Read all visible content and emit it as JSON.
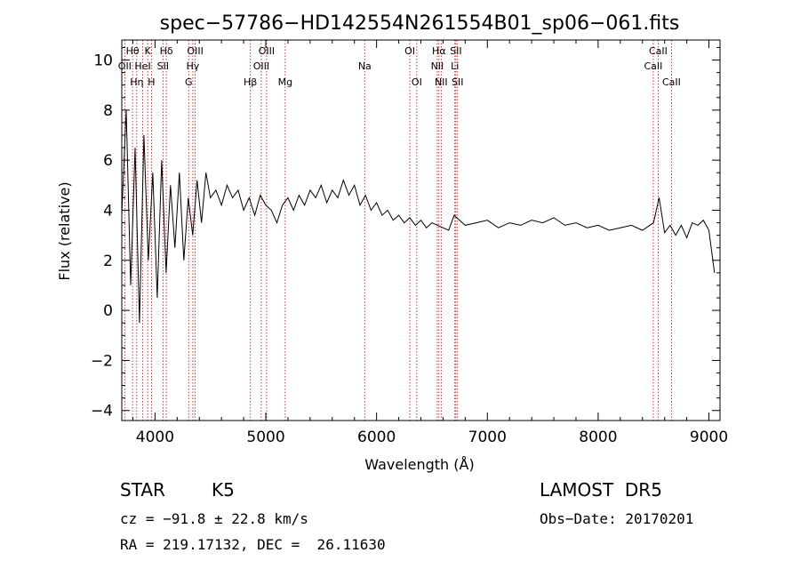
{
  "chart_data": {
    "type": "line",
    "title": "spec−57786−HD142554N261554B01_sp06−061.fits",
    "xlabel": "Wavelength (Å)",
    "ylabel": "Flux (relative)",
    "xlim": [
      3700,
      9100
    ],
    "ylim": [
      -4.4,
      10.8
    ],
    "x_ticks": [
      4000,
      5000,
      6000,
      7000,
      8000,
      9000
    ],
    "x_tick_labels": [
      "4000",
      "5000",
      "6000",
      "7000",
      "8000",
      "9000"
    ],
    "y_ticks": [
      -4,
      -2,
      0,
      2,
      4,
      6,
      8,
      10
    ],
    "y_tick_labels": [
      "−4",
      "−2",
      "0",
      "2",
      "4",
      "6",
      "8",
      "10"
    ],
    "grid": false,
    "series": [
      {
        "x": [
          3700,
          3740,
          3780,
          3820,
          3860,
          3900,
          3940,
          3980,
          4020,
          4060,
          4100,
          4140,
          4180,
          4220,
          4260,
          4300,
          4340,
          4380,
          4420,
          4460,
          4500,
          4550,
          4600,
          4650,
          4700,
          4750,
          4800,
          4850,
          4900,
          4950,
          5000,
          5050,
          5100,
          5150,
          5200,
          5250,
          5300,
          5350,
          5400,
          5450,
          5500,
          5550,
          5600,
          5650,
          5700,
          5750,
          5800,
          5850,
          5900,
          5950,
          6000,
          6050,
          6100,
          6150,
          6200,
          6250,
          6300,
          6350,
          6400,
          6450,
          6500,
          6550,
          6600,
          6650,
          6700,
          6750,
          6800,
          6900,
          7000,
          7100,
          7200,
          7300,
          7400,
          7500,
          7600,
          7700,
          7800,
          7900,
          8000,
          8100,
          8200,
          8300,
          8400,
          8500,
          8550,
          8600,
          8650,
          8700,
          8750,
          8800,
          8850,
          8900,
          8950,
          9000,
          9050
        ],
        "y": [
          3.8,
          8.0,
          1.0,
          6.5,
          -0.5,
          7.0,
          2.0,
          5.5,
          0.5,
          6.0,
          1.5,
          5.0,
          2.5,
          5.5,
          2.0,
          4.5,
          3.0,
          5.2,
          3.5,
          5.5,
          4.5,
          4.8,
          4.2,
          5.0,
          4.5,
          4.8,
          4.0,
          4.5,
          3.8,
          4.6,
          4.2,
          4.0,
          3.5,
          4.2,
          4.5,
          4.0,
          4.6,
          4.2,
          4.8,
          4.5,
          5.0,
          4.3,
          4.8,
          4.5,
          5.2,
          4.6,
          5.0,
          4.2,
          4.6,
          4.0,
          4.3,
          3.8,
          4.0,
          3.6,
          3.8,
          3.5,
          3.7,
          3.4,
          3.6,
          3.3,
          3.5,
          3.4,
          3.3,
          3.2,
          3.8,
          3.6,
          3.4,
          3.5,
          3.6,
          3.3,
          3.5,
          3.4,
          3.6,
          3.5,
          3.7,
          3.4,
          3.5,
          3.3,
          3.4,
          3.2,
          3.3,
          3.4,
          3.2,
          3.5,
          4.5,
          3.1,
          3.4,
          3.0,
          3.4,
          2.9,
          3.5,
          3.4,
          3.6,
          3.2,
          1.5
        ]
      }
    ],
    "spectral_lines": [
      {
        "wavelength": 3727,
        "label": "OII",
        "row": 2
      },
      {
        "wavelength": 3797,
        "label": "Hθ",
        "row": 1
      },
      {
        "wavelength": 3835,
        "label": "Hη",
        "row": 3
      },
      {
        "wavelength": 3889,
        "label": "HeI",
        "row": 2
      },
      {
        "wavelength": 3934,
        "label": "K",
        "row": 1
      },
      {
        "wavelength": 3968,
        "label": "H",
        "row": 3
      },
      {
        "wavelength": 4072,
        "label": "SII",
        "row": 2
      },
      {
        "wavelength": 4102,
        "label": "Hδ",
        "row": 1
      },
      {
        "wavelength": 4304,
        "label": "G",
        "row": 3
      },
      {
        "wavelength": 4341,
        "label": "Hγ",
        "row": 2
      },
      {
        "wavelength": 4363,
        "label": "OIII",
        "row": 1
      },
      {
        "wavelength": 4861,
        "label": "Hβ",
        "row": 3
      },
      {
        "wavelength": 4959,
        "label": "OIII",
        "row": 2
      },
      {
        "wavelength": 5007,
        "label": "OIII",
        "row": 1
      },
      {
        "wavelength": 5175,
        "label": "Mg",
        "row": 3
      },
      {
        "wavelength": 5893,
        "label": "Na",
        "row": 2
      },
      {
        "wavelength": 6300,
        "label": "OI",
        "row": 1
      },
      {
        "wavelength": 6363,
        "label": "OI",
        "row": 3
      },
      {
        "wavelength": 6548,
        "label": "NII",
        "row": 2
      },
      {
        "wavelength": 6563,
        "label": "Hα",
        "row": 1
      },
      {
        "wavelength": 6583,
        "label": "NII",
        "row": 3
      },
      {
        "wavelength": 6707,
        "label": "Li",
        "row": 2
      },
      {
        "wavelength": 6716,
        "label": "SII",
        "row": 1
      },
      {
        "wavelength": 6731,
        "label": "SII",
        "row": 3
      },
      {
        "wavelength": 8498,
        "label": "CaII",
        "row": 2
      },
      {
        "wavelength": 8542,
        "label": "CaII",
        "row": 1
      },
      {
        "wavelength": 8662,
        "label": "CaII",
        "row": 3
      }
    ]
  },
  "info": {
    "object_class": "STAR",
    "subclass": "K5",
    "survey": "LAMOST  DR5",
    "cz": "cz = −91.8 ± 22.8 km/s",
    "obs_date": "Obs−Date: 20170201",
    "coords": "RA = 219.17132, DEC =  26.11630"
  },
  "colors": {
    "spectrum": "#000000",
    "line_markers": "#cc0000",
    "axes": "#000000"
  }
}
